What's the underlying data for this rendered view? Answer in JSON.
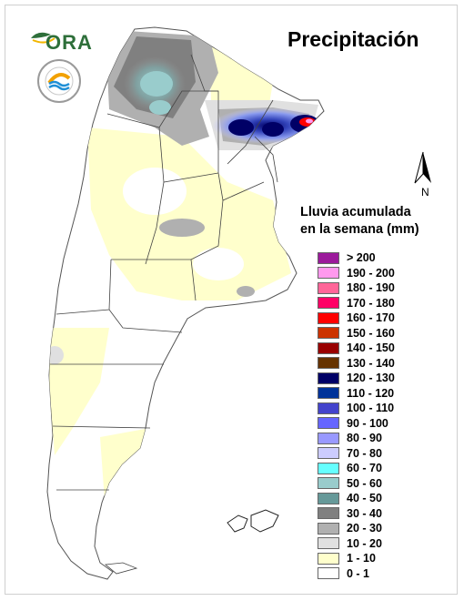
{
  "title": "Precipitación",
  "logo": {
    "text": "ORA"
  },
  "seal": {
    "icon": "institute-seal-icon"
  },
  "north_arrow": {
    "label": "N",
    "icon": "north-arrow-icon"
  },
  "legend": {
    "title_line1": "Lluvia acumulada",
    "title_line2": "en la semana (mm)",
    "items": [
      {
        "label": "> 200",
        "color": "#9b1a9b"
      },
      {
        "label": "190 - 200",
        "color": "#ff99ee"
      },
      {
        "label": "180 - 190",
        "color": "#ff6699"
      },
      {
        "label": "170 - 180",
        "color": "#ff0066"
      },
      {
        "label": "160 - 170",
        "color": "#ff0000"
      },
      {
        "label": "150 - 160",
        "color": "#cc3300"
      },
      {
        "label": "140 - 150",
        "color": "#990000"
      },
      {
        "label": "130 - 140",
        "color": "#663300"
      },
      {
        "label": "120 - 130",
        "color": "#000066"
      },
      {
        "label": "110 - 120",
        "color": "#003399"
      },
      {
        "label": "100 - 110",
        "color": "#4444cc"
      },
      {
        "label": "90 - 100",
        "color": "#6666ff"
      },
      {
        "label": "80 - 90",
        "color": "#9999ff"
      },
      {
        "label": "70 - 80",
        "color": "#ccccff"
      },
      {
        "label": "60 - 70",
        "color": "#66ffff"
      },
      {
        "label": "50 - 60",
        "color": "#99cccc"
      },
      {
        "label": "40 - 50",
        "color": "#669999"
      },
      {
        "label": "30 - 40",
        "color": "#808080"
      },
      {
        "label": "20 - 30",
        "color": "#b0b0b0"
      },
      {
        "label": "10 - 20",
        "color": "#e0e0e0"
      },
      {
        "label": "1 - 10",
        "color": "#ffffcc"
      },
      {
        "label": "0 - 1",
        "color": "#ffffff"
      }
    ]
  }
}
